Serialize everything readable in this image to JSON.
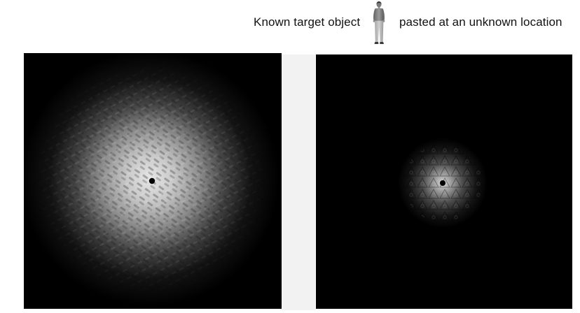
{
  "header": {
    "left_caption": "Known target object",
    "right_caption": "pasted at an unknown location"
  },
  "icons": {
    "target_figure": "person-standing-icon"
  },
  "panels": {
    "left": {
      "name": "correlation-map-left",
      "peak_marker": "black-dot"
    },
    "right": {
      "name": "correlation-map-right",
      "peak_marker": "black-dot"
    }
  },
  "colors": {
    "background": "#ffffff",
    "panel": "#000000",
    "strip": "#f2f2f2"
  }
}
